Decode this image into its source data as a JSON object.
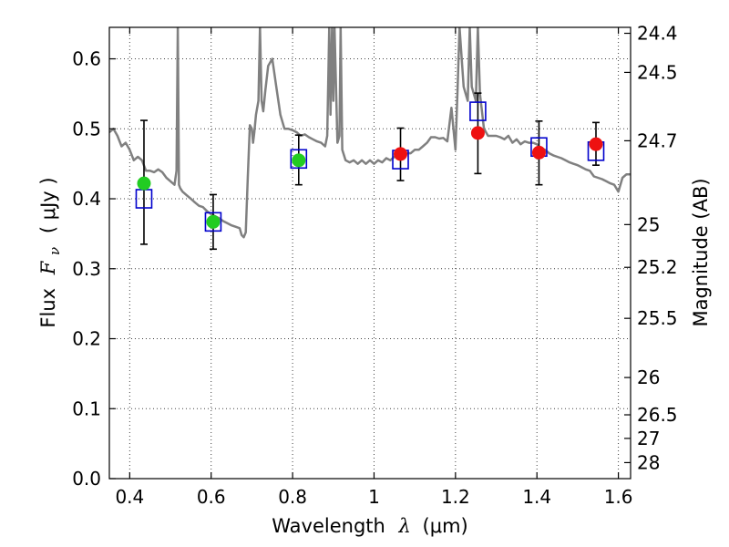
{
  "chart_data": {
    "type": "scatter",
    "xlabel_prefix": "Wavelength",
    "xlabel_symbol": "λ",
    "xlabel_unit": "(μm)",
    "ylabel_prefix": "Flux",
    "ylabel_symbol": "F",
    "ylabel_subscript": "ν",
    "ylabel_unit": "( μJy )",
    "y2label": "Magnitude (AB)",
    "xlim": [
      0.35,
      1.63
    ],
    "ylim": [
      0.0,
      0.645
    ],
    "xticks": [
      0.4,
      0.6,
      0.8,
      1.0,
      1.2,
      1.4,
      1.6
    ],
    "xtick_labels": [
      "0.4",
      "0.6",
      "0.8",
      "1",
      "1.2",
      "1.4",
      "1.6"
    ],
    "yticks": [
      0.0,
      0.1,
      0.2,
      0.3,
      0.4,
      0.5,
      0.6
    ],
    "ytick_labels": [
      "0.0",
      "0.1",
      "0.2",
      "0.3",
      "0.4",
      "0.5",
      "0.6"
    ],
    "y2ticks": [
      {
        "label": "24.4",
        "flux": 0.6365
      },
      {
        "label": "24.5",
        "flux": 0.5806
      },
      {
        "label": "24.7",
        "flux": 0.4829
      },
      {
        "label": "25",
        "flux": 0.3631
      },
      {
        "label": "25.2",
        "flux": 0.302
      },
      {
        "label": "25.5",
        "flux": 0.2291
      },
      {
        "label": "26",
        "flux": 0.1445
      },
      {
        "label": "26.5",
        "flux": 0.0912
      },
      {
        "label": "27",
        "flux": 0.0575
      },
      {
        "label": "28",
        "flux": 0.0229
      }
    ],
    "grid": true,
    "colors": {
      "spectrum": "#808080",
      "model": "#0000cc",
      "optical": "#22cc22",
      "nir": "#ee1111",
      "errorbar": "#000000"
    },
    "spectrum": {
      "x": [
        0.35,
        0.36,
        0.37,
        0.38,
        0.39,
        0.4,
        0.41,
        0.42,
        0.43,
        0.44,
        0.45,
        0.46,
        0.47,
        0.48,
        0.49,
        0.5,
        0.51,
        0.515,
        0.518,
        0.521,
        0.524,
        0.53,
        0.54,
        0.55,
        0.56,
        0.57,
        0.58,
        0.59,
        0.6,
        0.61,
        0.62,
        0.63,
        0.64,
        0.65,
        0.66,
        0.67,
        0.675,
        0.68,
        0.685,
        0.69,
        0.695,
        0.7,
        0.703,
        0.706,
        0.71,
        0.716,
        0.72,
        0.724,
        0.728,
        0.733,
        0.74,
        0.75,
        0.76,
        0.77,
        0.78,
        0.79,
        0.8,
        0.81,
        0.82,
        0.83,
        0.84,
        0.85,
        0.86,
        0.87,
        0.88,
        0.885,
        0.89,
        0.893,
        0.897,
        0.9,
        0.903,
        0.91,
        0.915,
        0.918,
        0.922,
        0.93,
        0.94,
        0.95,
        0.96,
        0.97,
        0.98,
        0.99,
        1.0,
        1.01,
        1.02,
        1.03,
        1.04,
        1.05,
        1.06,
        1.07,
        1.08,
        1.09,
        1.1,
        1.11,
        1.12,
        1.13,
        1.14,
        1.15,
        1.16,
        1.17,
        1.18,
        1.19,
        1.2,
        1.205,
        1.21,
        1.22,
        1.23,
        1.235,
        1.24,
        1.25,
        1.255,
        1.26,
        1.27,
        1.28,
        1.29,
        1.3,
        1.31,
        1.32,
        1.33,
        1.34,
        1.35,
        1.36,
        1.37,
        1.38,
        1.39,
        1.4,
        1.41,
        1.42,
        1.43,
        1.44,
        1.45,
        1.46,
        1.47,
        1.48,
        1.49,
        1.5,
        1.51,
        1.52,
        1.53,
        1.54,
        1.55,
        1.56,
        1.57,
        1.58,
        1.59,
        1.6,
        1.61,
        1.62,
        1.63
      ],
      "y": [
        0.495,
        0.5,
        0.49,
        0.475,
        0.48,
        0.47,
        0.455,
        0.46,
        0.455,
        0.44,
        0.44,
        0.438,
        0.442,
        0.438,
        0.43,
        0.425,
        0.42,
        0.44,
        0.645,
        0.42,
        0.415,
        0.41,
        0.405,
        0.4,
        0.395,
        0.39,
        0.388,
        0.382,
        0.378,
        0.375,
        0.372,
        0.368,
        0.365,
        0.362,
        0.36,
        0.358,
        0.348,
        0.345,
        0.352,
        0.43,
        0.505,
        0.5,
        0.48,
        0.495,
        0.52,
        0.54,
        0.645,
        0.54,
        0.525,
        0.555,
        0.59,
        0.6,
        0.56,
        0.52,
        0.5,
        0.5,
        0.498,
        0.495,
        0.49,
        0.492,
        0.488,
        0.485,
        0.482,
        0.48,
        0.475,
        0.49,
        0.645,
        0.52,
        0.645,
        0.54,
        0.645,
        0.48,
        0.49,
        0.645,
        0.47,
        0.455,
        0.452,
        0.455,
        0.45,
        0.455,
        0.45,
        0.455,
        0.45,
        0.455,
        0.452,
        0.458,
        0.455,
        0.46,
        0.46,
        0.462,
        0.465,
        0.465,
        0.47,
        0.47,
        0.475,
        0.48,
        0.488,
        0.488,
        0.486,
        0.487,
        0.482,
        0.53,
        0.47,
        0.555,
        0.645,
        0.56,
        0.54,
        0.645,
        0.56,
        0.54,
        0.645,
        0.55,
        0.5,
        0.49,
        0.49,
        0.49,
        0.488,
        0.485,
        0.49,
        0.48,
        0.485,
        0.478,
        0.482,
        0.48,
        0.48,
        0.478,
        0.472,
        0.47,
        0.465,
        0.462,
        0.46,
        0.458,
        0.455,
        0.452,
        0.45,
        0.448,
        0.445,
        0.442,
        0.44,
        0.432,
        0.43,
        0.428,
        0.425,
        0.422,
        0.42,
        0.41,
        0.43,
        0.435,
        0.435
      ]
    },
    "series": [
      {
        "marker": "square",
        "x": [
          0.435,
          0.605,
          0.815,
          1.065,
          1.255,
          1.405,
          1.545
        ],
        "y": [
          0.4,
          0.367,
          0.457,
          0.456,
          0.525,
          0.474,
          0.468
        ]
      },
      {
        "marker": "circle",
        "color": "#22cc22",
        "x": [
          0.435,
          0.605,
          0.815
        ],
        "y": [
          0.422,
          0.367,
          0.455
        ],
        "yerr_low": [
          0.335,
          0.328,
          0.42
        ],
        "yerr_high": [
          0.512,
          0.406,
          0.491
        ]
      },
      {
        "marker": "circle",
        "color": "#ee1111",
        "x": [
          1.065,
          1.255,
          1.405,
          1.545
        ],
        "y": [
          0.464,
          0.494,
          0.466,
          0.478
        ],
        "yerr_low": [
          0.426,
          0.436,
          0.42,
          0.448
        ],
        "yerr_high": [
          0.501,
          0.551,
          0.511,
          0.509
        ]
      }
    ]
  }
}
